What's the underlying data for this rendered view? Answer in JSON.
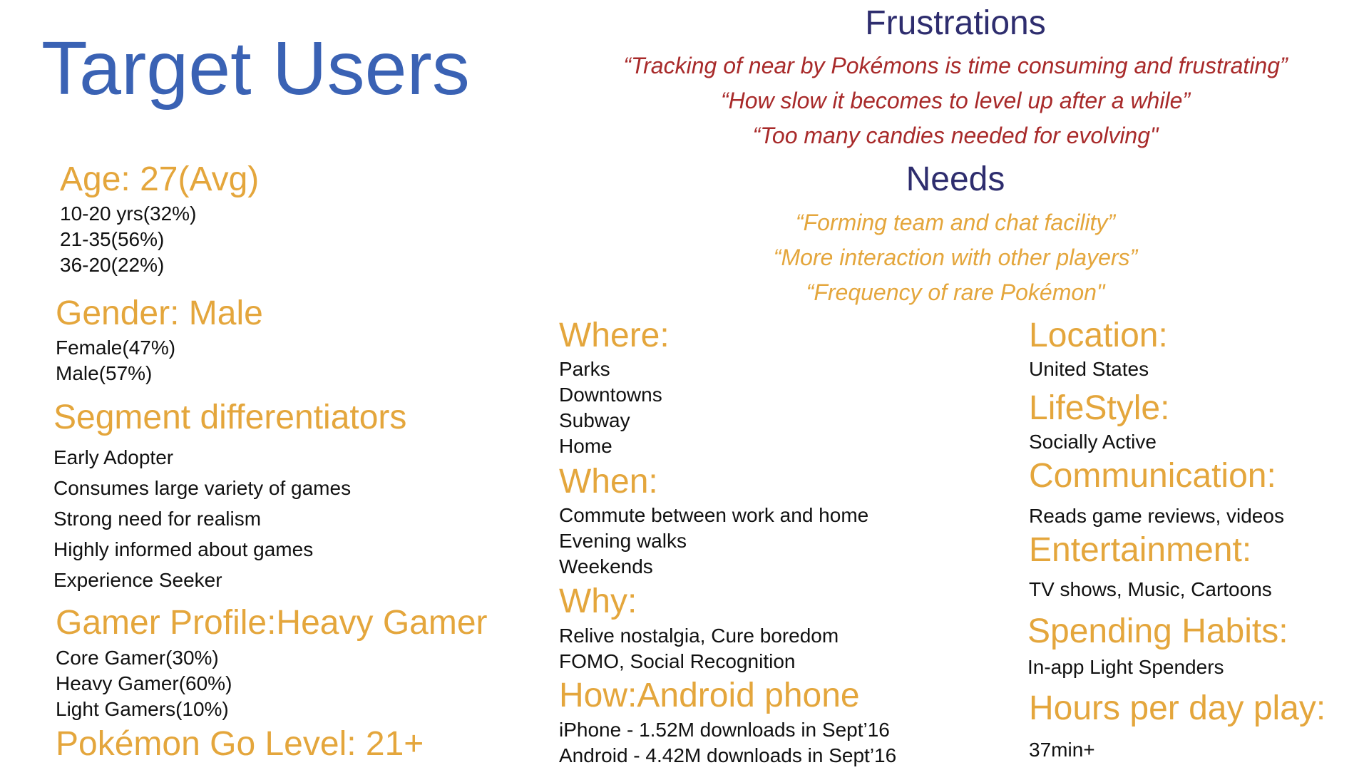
{
  "title": "Target Users",
  "age": {
    "heading": "Age: 27(Avg)",
    "items": [
      "10-20 yrs(32%)",
      "21-35(56%)",
      "36-20(22%)"
    ]
  },
  "gender": {
    "heading": "Gender: Male",
    "items": [
      "Female(47%)",
      "Male(57%)"
    ]
  },
  "segment": {
    "heading": "Segment differentiators",
    "items": [
      "Early Adopter",
      "Consumes large variety of games",
      "Strong need for realism",
      "Highly informed about games",
      "Experience Seeker"
    ]
  },
  "gamer": {
    "heading": "Gamer Profile:Heavy Gamer",
    "items": [
      "Core Gamer(30%)",
      "Heavy Gamer(60%)",
      "Light Gamers(10%)"
    ]
  },
  "level": {
    "heading": "Pokémon Go Level: 21+"
  },
  "frustrations": {
    "heading": "Frustrations",
    "quotes": [
      "“Tracking of near by Pokémons is time consuming and frustrating”",
      "“How slow it becomes to level up after a while”",
      "“Too many candies needed for evolving\""
    ]
  },
  "needs": {
    "heading": "Needs",
    "quotes": [
      "“Forming team and chat facility”",
      "“More interaction with other players”",
      "“Frequency of rare Pokémon\""
    ]
  },
  "where": {
    "heading": "Where:",
    "items": [
      "Parks",
      "Downtowns",
      "Subway",
      "Home"
    ]
  },
  "when": {
    "heading": "When:",
    "items": [
      "Commute between work and home",
      "Evening walks",
      "Weekends"
    ]
  },
  "why": {
    "heading": "Why:",
    "items": [
      "Relive nostalgia, Cure boredom",
      "FOMO, Social Recognition"
    ]
  },
  "how": {
    "heading": "How:Android phone",
    "items": [
      "iPhone - 1.52M downloads in Sept’16",
      "Android - 4.42M downloads in Sept’16"
    ]
  },
  "location": {
    "heading": "Location:",
    "items": [
      "United States"
    ]
  },
  "lifestyle": {
    "heading": "LifeStyle:",
    "items": [
      "Socially Active"
    ]
  },
  "communication": {
    "heading": "Communication:",
    "items": [
      "Reads game reviews, videos"
    ]
  },
  "entertainment": {
    "heading": "Entertainment:",
    "items": [
      "TV shows, Music, Cartoons"
    ]
  },
  "spending": {
    "heading": "Spending Habits:",
    "items": [
      "In-app Light Spenders"
    ]
  },
  "hours": {
    "heading": "Hours per day play:",
    "items": [
      "37min+"
    ]
  },
  "colors": {
    "title": "#3a62b4",
    "heading": "#e4a63c",
    "section": "#2e2d6e",
    "frustration_quote": "#a82a2a"
  }
}
